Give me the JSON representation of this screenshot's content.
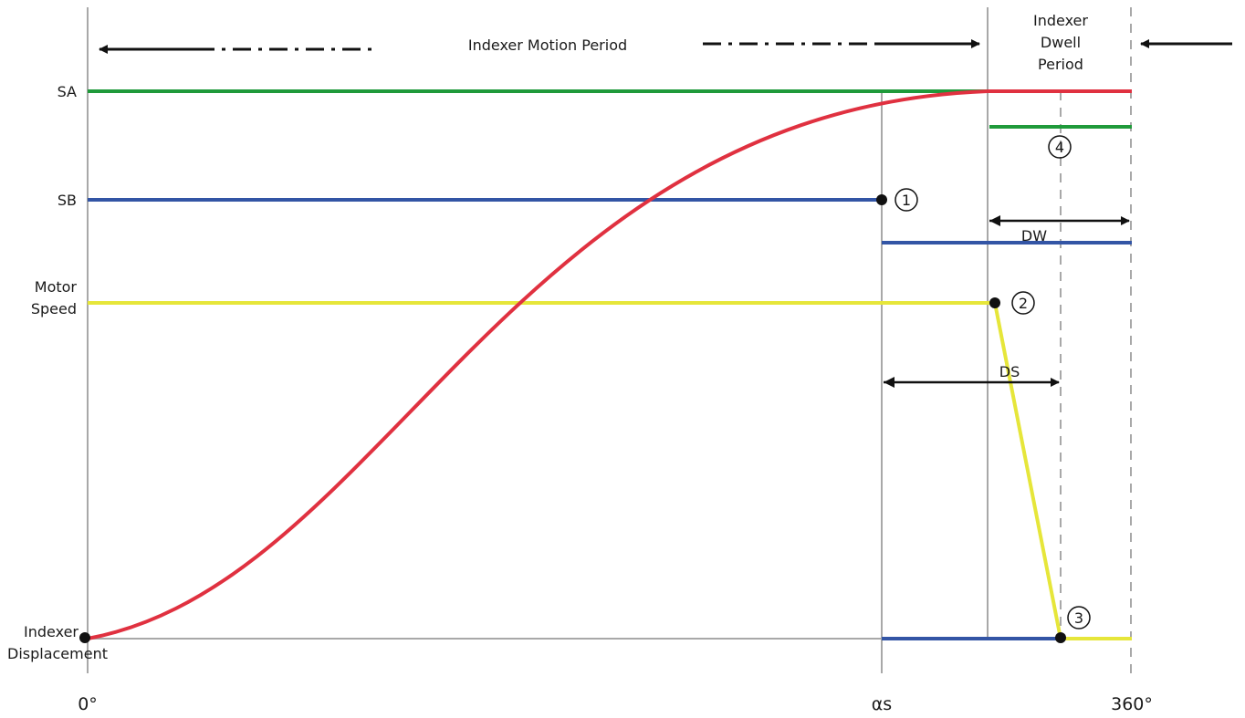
{
  "labels": {
    "motion_period": "Indexer Motion Period",
    "dwell_period_line1": "Indexer",
    "dwell_period_line2": "Dwell",
    "dwell_period_line3": "Period",
    "sa": "SA",
    "sb": "SB",
    "motor_speed_line1": "Motor",
    "motor_speed_line2": "Speed",
    "indexer_disp_line1": "Indexer",
    "indexer_disp_line2": "Displacement",
    "dw": "DW",
    "ds": "DS"
  },
  "x_axis": {
    "tick_start": "0°",
    "tick_alpha": "αs",
    "tick_end": "360°"
  },
  "markers": {
    "m1": "1",
    "m2": "2",
    "m3": "3",
    "m4": "4"
  },
  "colors": {
    "sa_signal": "#1f9a3a",
    "sb_signal": "#3355a5",
    "motor_speed": "#e6e63a",
    "displacement": "#e03140",
    "grid": "#a8a8a8",
    "arrow": "#111111"
  }
}
